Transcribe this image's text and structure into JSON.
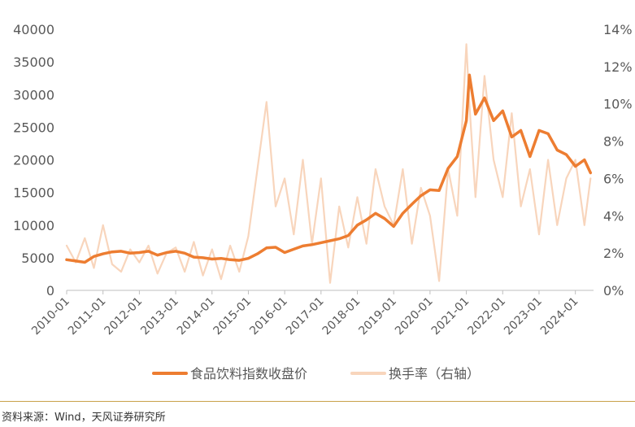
{
  "chart_data": {
    "type": "line",
    "title": "",
    "x_ticks": [
      "2010-01",
      "2011-01",
      "2012-01",
      "2013-01",
      "2014-01",
      "2015-01",
      "2016-01",
      "2017-01",
      "2018-01",
      "2019-01",
      "2020-01",
      "2021-01",
      "2022-01",
      "2023-01",
      "2024-01"
    ],
    "left_axis": {
      "ylim": [
        0,
        40000
      ],
      "ticks": [
        "0",
        "5000",
        "10000",
        "15000",
        "20000",
        "25000",
        "30000",
        "35000",
        "40000"
      ]
    },
    "right_axis": {
      "ylim": [
        0,
        14
      ],
      "ticks": [
        "0%",
        "2%",
        "4%",
        "6%",
        "8%",
        "10%",
        "12%",
        "14%"
      ]
    },
    "legend_position": "bottom",
    "series": [
      {
        "name": "食品饮料指数收盘价",
        "axis": "left",
        "color": "#ED7D31",
        "points": [
          [
            "2010-01",
            4700
          ],
          [
            "2010-04",
            4500
          ],
          [
            "2010-07",
            4300
          ],
          [
            "2010-10",
            5200
          ],
          [
            "2011-01",
            5600
          ],
          [
            "2011-04",
            5900
          ],
          [
            "2011-07",
            6000
          ],
          [
            "2011-10",
            5700
          ],
          [
            "2012-01",
            5800
          ],
          [
            "2012-04",
            6000
          ],
          [
            "2012-07",
            5400
          ],
          [
            "2012-10",
            5800
          ],
          [
            "2013-01",
            6000
          ],
          [
            "2013-04",
            5700
          ],
          [
            "2013-07",
            5100
          ],
          [
            "2013-10",
            5000
          ],
          [
            "2014-01",
            4800
          ],
          [
            "2014-04",
            4900
          ],
          [
            "2014-07",
            4700
          ],
          [
            "2014-10",
            4600
          ],
          [
            "2015-01",
            4900
          ],
          [
            "2015-04",
            5600
          ],
          [
            "2015-07",
            6500
          ],
          [
            "2015-10",
            6600
          ],
          [
            "2016-01",
            5800
          ],
          [
            "2016-04",
            6300
          ],
          [
            "2016-07",
            6800
          ],
          [
            "2016-10",
            7000
          ],
          [
            "2017-01",
            7300
          ],
          [
            "2017-04",
            7600
          ],
          [
            "2017-07",
            7900
          ],
          [
            "2017-10",
            8400
          ],
          [
            "2018-01",
            10000
          ],
          [
            "2018-04",
            10800
          ],
          [
            "2018-07",
            11800
          ],
          [
            "2018-10",
            11000
          ],
          [
            "2019-01",
            9800
          ],
          [
            "2019-04",
            11800
          ],
          [
            "2019-07",
            13200
          ],
          [
            "2019-10",
            14500
          ],
          [
            "2020-01",
            15400
          ],
          [
            "2020-04",
            15300
          ],
          [
            "2020-07",
            18700
          ],
          [
            "2020-10",
            20500
          ],
          [
            "2021-01",
            26000
          ],
          [
            "2021-02",
            33000
          ],
          [
            "2021-04",
            27000
          ],
          [
            "2021-07",
            29500
          ],
          [
            "2021-10",
            26000
          ],
          [
            "2022-01",
            27500
          ],
          [
            "2022-04",
            23500
          ],
          [
            "2022-07",
            24500
          ],
          [
            "2022-10",
            20500
          ],
          [
            "2023-01",
            24500
          ],
          [
            "2023-04",
            24000
          ],
          [
            "2023-07",
            21500
          ],
          [
            "2023-10",
            20800
          ],
          [
            "2024-01",
            19000
          ],
          [
            "2024-04",
            20000
          ],
          [
            "2024-06",
            18000
          ]
        ]
      },
      {
        "name": "换手率（右轴）",
        "axis": "right",
        "color": "#F8D5BC",
        "points": [
          [
            "2010-01",
            2.4
          ],
          [
            "2010-04",
            1.5
          ],
          [
            "2010-07",
            2.8
          ],
          [
            "2010-10",
            1.2
          ],
          [
            "2011-01",
            3.5
          ],
          [
            "2011-04",
            1.4
          ],
          [
            "2011-07",
            1.0
          ],
          [
            "2011-10",
            2.2
          ],
          [
            "2012-01",
            1.5
          ],
          [
            "2012-04",
            2.4
          ],
          [
            "2012-07",
            0.9
          ],
          [
            "2012-10",
            2.0
          ],
          [
            "2013-01",
            2.3
          ],
          [
            "2013-04",
            1.0
          ],
          [
            "2013-07",
            2.6
          ],
          [
            "2013-10",
            0.8
          ],
          [
            "2014-01",
            2.2
          ],
          [
            "2014-04",
            0.6
          ],
          [
            "2014-07",
            2.4
          ],
          [
            "2014-10",
            1.0
          ],
          [
            "2015-01",
            2.9
          ],
          [
            "2015-04",
            6.5
          ],
          [
            "2015-07",
            10.1
          ],
          [
            "2015-10",
            4.5
          ],
          [
            "2016-01",
            6.0
          ],
          [
            "2016-04",
            3.0
          ],
          [
            "2016-07",
            7.0
          ],
          [
            "2016-10",
            2.5
          ],
          [
            "2017-01",
            6.0
          ],
          [
            "2017-04",
            0.4
          ],
          [
            "2017-07",
            4.5
          ],
          [
            "2017-10",
            2.3
          ],
          [
            "2018-01",
            5.0
          ],
          [
            "2018-04",
            2.5
          ],
          [
            "2018-07",
            6.5
          ],
          [
            "2018-10",
            4.5
          ],
          [
            "2019-01",
            3.5
          ],
          [
            "2019-04",
            6.5
          ],
          [
            "2019-07",
            2.5
          ],
          [
            "2019-10",
            5.5
          ],
          [
            "2020-01",
            4.0
          ],
          [
            "2020-04",
            0.5
          ],
          [
            "2020-07",
            6.5
          ],
          [
            "2020-10",
            4.0
          ],
          [
            "2021-01",
            13.2
          ],
          [
            "2021-02",
            10.0
          ],
          [
            "2021-04",
            5.0
          ],
          [
            "2021-07",
            11.5
          ],
          [
            "2021-10",
            7.0
          ],
          [
            "2022-01",
            5.0
          ],
          [
            "2022-04",
            9.5
          ],
          [
            "2022-07",
            4.5
          ],
          [
            "2022-10",
            6.5
          ],
          [
            "2023-01",
            3.0
          ],
          [
            "2023-04",
            7.0
          ],
          [
            "2023-07",
            3.5
          ],
          [
            "2023-10",
            6.0
          ],
          [
            "2024-01",
            7.0
          ],
          [
            "2024-04",
            3.5
          ],
          [
            "2024-06",
            6.0
          ]
        ]
      }
    ]
  },
  "source": "资料来源：Wind，天风证券研究所"
}
